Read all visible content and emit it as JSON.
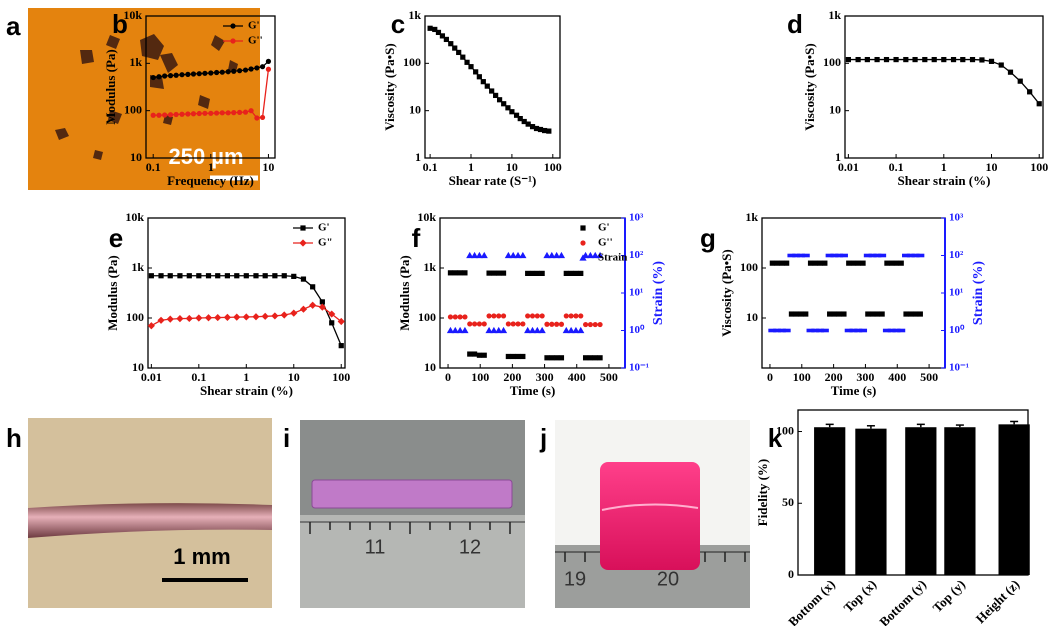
{
  "chart_data": [
    {
      "type": "line",
      "panel": "b",
      "x_label": "Frequency (Hz)",
      "y_label": "Modulus (Pa)",
      "log_x": true,
      "log_y": true,
      "xlim": [
        0.075,
        13
      ],
      "xticks": [
        0.1,
        1,
        10
      ],
      "ylim": [
        10,
        10000
      ],
      "yticks": [
        10,
        100,
        {
          "value": 1000,
          "label": "1k"
        },
        {
          "value": 10000,
          "label": "10k"
        }
      ],
      "legend": "upper right",
      "x": [
        0.1,
        0.126,
        0.158,
        0.2,
        0.25,
        0.316,
        0.4,
        0.5,
        0.63,
        0.79,
        1,
        1.26,
        1.58,
        2,
        2.5,
        3.16,
        4,
        5,
        6.3,
        7.9,
        10
      ],
      "series": [
        {
          "name": "G'",
          "color": "#000000",
          "marker": "circle",
          "values": [
            500,
            520,
            540,
            550,
            560,
            575,
            585,
            595,
            605,
            615,
            625,
            640,
            650,
            665,
            680,
            700,
            720,
            760,
            800,
            850,
            1100
          ]
        },
        {
          "name": "G''",
          "color": "#e8221c",
          "marker": "circle",
          "values": [
            80,
            80,
            81,
            82,
            83,
            84,
            85,
            86,
            87,
            88,
            88,
            89,
            90,
            90,
            91,
            92,
            93,
            100,
            70,
            72,
            750
          ]
        }
      ]
    },
    {
      "type": "line",
      "panel": "c",
      "x_label": "Shear rate (S⁻¹)",
      "y_label": "Viscosity (Pa•S)",
      "log_x": true,
      "log_y": true,
      "xlim": [
        0.075,
        150
      ],
      "xticks": [
        0.1,
        1,
        10,
        100
      ],
      "ylim": [
        1,
        1000
      ],
      "yticks": [
        1,
        10,
        100,
        {
          "value": 1000,
          "label": "1k"
        }
      ],
      "x": [
        0.1,
        0.13,
        0.16,
        0.2,
        0.25,
        0.32,
        0.4,
        0.5,
        0.63,
        0.8,
        1,
        1.3,
        1.6,
        2,
        2.5,
        3.2,
        4,
        5,
        6.3,
        8,
        10,
        13,
        16,
        20,
        25,
        32,
        40,
        50,
        63,
        80
      ],
      "series": [
        {
          "color": "#000000",
          "marker": "square",
          "values": [
            550,
            520,
            450,
            380,
            320,
            260,
            210,
            170,
            135,
            105,
            85,
            66,
            52,
            41,
            33,
            26,
            21,
            17,
            14,
            11.5,
            9.5,
            8,
            6.8,
            5.9,
            5.2,
            4.6,
            4.2,
            4.0,
            3.8,
            3.7
          ]
        }
      ]
    },
    {
      "type": "line",
      "panel": "d",
      "x_label": "Shear strain (%)",
      "y_label": "Viscosity (Pa•S)",
      "log_x": true,
      "log_y": true,
      "xlim": [
        0.0085,
        120
      ],
      "xticks": [
        0.01,
        0.1,
        1,
        10,
        100
      ],
      "ylim": [
        1,
        1000
      ],
      "yticks": [
        1,
        10,
        100,
        {
          "value": 1000,
          "label": "1k"
        }
      ],
      "x": [
        0.01,
        0.016,
        0.025,
        0.04,
        0.063,
        0.1,
        0.16,
        0.25,
        0.4,
        0.63,
        1,
        1.6,
        2.5,
        4,
        6.3,
        10,
        16,
        25,
        40,
        63,
        100
      ],
      "series": [
        {
          "color": "#000000",
          "marker": "square",
          "values": [
            120,
            120,
            120,
            120,
            120,
            120,
            120,
            120,
            120,
            120,
            120,
            120,
            120,
            120,
            118,
            110,
            92,
            65,
            42,
            25,
            14
          ]
        }
      ]
    },
    {
      "type": "line",
      "panel": "e",
      "x_label": "Shear strain (%)",
      "y_label": "Modulus (Pa)",
      "log_x": true,
      "log_y": true,
      "xlim": [
        0.0085,
        120
      ],
      "xticks": [
        0.01,
        0.1,
        1,
        10,
        100
      ],
      "ylim": [
        10,
        10000
      ],
      "yticks": [
        10,
        100,
        {
          "value": 1000,
          "label": "1k"
        },
        {
          "value": 10000,
          "label": "10k"
        }
      ],
      "legend": "upper right",
      "x": [
        0.01,
        0.016,
        0.025,
        0.04,
        0.063,
        0.1,
        0.16,
        0.25,
        0.4,
        0.63,
        1,
        1.6,
        2.5,
        4,
        6.3,
        10,
        16,
        25,
        40,
        63,
        100
      ],
      "series": [
        {
          "name": "G'",
          "color": "#000000",
          "marker": "square",
          "values": [
            700,
            700,
            700,
            700,
            700,
            700,
            700,
            700,
            700,
            700,
            700,
            700,
            700,
            700,
            700,
            680,
            600,
            420,
            210,
            80,
            28
          ]
        },
        {
          "name": "G\"",
          "color": "#e8221c",
          "marker": "diamond",
          "values": [
            70,
            90,
            95,
            97,
            98,
            100,
            101,
            102,
            103,
            104,
            105,
            106,
            108,
            110,
            115,
            125,
            150,
            180,
            165,
            120,
            85
          ]
        }
      ]
    },
    {
      "type": "scatter",
      "panel": "f",
      "x_label": "Time (s)",
      "y_label": "Modulus (Pa)",
      "y2_label": "Strain (%)",
      "log_y": true,
      "log_y2": true,
      "xlim": [
        -25,
        550
      ],
      "xticks": [
        0,
        100,
        200,
        300,
        400,
        500
      ],
      "ylim": [
        10,
        10000
      ],
      "yticks": [
        10,
        100,
        {
          "value": 1000,
          "label": "1k"
        },
        {
          "value": 10000,
          "label": "10k"
        }
      ],
      "y2lim": [
        0.1,
        1000
      ],
      "y2ticks": [
        {
          "value": 0.1,
          "label": "10⁻¹"
        },
        {
          "value": 1,
          "label": "10⁰"
        },
        {
          "value": 10,
          "label": "10¹"
        },
        {
          "value": 100,
          "label": "10²"
        },
        {
          "value": 1000,
          "label": "10³"
        }
      ],
      "legend": "upper right",
      "x": [
        7.5,
        22.5,
        37.5,
        52.5,
        67.5,
        82.5,
        97.5,
        112.5,
        127.5,
        142.5,
        157.5,
        172.5,
        187.5,
        202.5,
        217.5,
        232.5,
        247.5,
        262.5,
        277.5,
        292.5,
        307.5,
        322.5,
        337.5,
        352.5,
        367.5,
        382.5,
        397.5,
        412.5,
        427.5,
        442.5,
        457.5,
        472.5
      ],
      "series": [
        {
          "name": "G'",
          "color": "#000000",
          "marker": "square",
          "values": [
            800,
            800,
            800,
            800,
            19,
            19,
            18,
            18,
            790,
            790,
            790,
            790,
            17,
            17,
            17,
            17,
            780,
            780,
            780,
            780,
            16,
            16,
            16,
            16,
            780,
            780,
            780,
            780,
            16,
            16,
            16,
            16
          ]
        },
        {
          "name": "G''",
          "color": "#e8221c",
          "marker": "circle",
          "values": [
            105,
            105,
            105,
            105,
            76,
            76,
            76,
            76,
            110,
            110,
            110,
            110,
            76,
            76,
            76,
            76,
            110,
            110,
            110,
            110,
            75,
            75,
            75,
            75,
            110,
            110,
            110,
            110,
            74,
            74,
            74,
            74
          ]
        },
        {
          "name": "Strain",
          "color": "#1a1aff",
          "marker": "triangle",
          "axis": "y2",
          "values": [
            1,
            1,
            1,
            1,
            100,
            100,
            100,
            100,
            1,
            1,
            1,
            1,
            100,
            100,
            100,
            100,
            1,
            1,
            1,
            1,
            100,
            100,
            100,
            100,
            1,
            1,
            1,
            1,
            100,
            100,
            100,
            100
          ]
        }
      ]
    },
    {
      "type": "scatter",
      "panel": "g",
      "x_label": "Time (s)",
      "y_label": "Viscosity (Pa•S)",
      "y2_label": "Strain (%)",
      "log_y": true,
      "log_y2": true,
      "xlim": [
        -25,
        550
      ],
      "xticks": [
        0,
        100,
        200,
        300,
        400,
        500
      ],
      "ylim": [
        1,
        1000
      ],
      "yticks": [
        10,
        100,
        {
          "value": 1000,
          "label": "1k"
        }
      ],
      "y2lim": [
        0.1,
        1000
      ],
      "y2ticks": [
        {
          "value": 0.1,
          "label": "10⁻¹"
        },
        {
          "value": 1,
          "label": "10⁰"
        },
        {
          "value": 10,
          "label": "10¹"
        },
        {
          "value": 100,
          "label": "10²"
        },
        {
          "value": 1000,
          "label": "10³"
        }
      ],
      "x": [
        7.5,
        22.5,
        37.5,
        52.5,
        67.5,
        82.5,
        97.5,
        112.5,
        127.5,
        142.5,
        157.5,
        172.5,
        187.5,
        202.5,
        217.5,
        232.5,
        247.5,
        262.5,
        277.5,
        292.5,
        307.5,
        322.5,
        337.5,
        352.5,
        367.5,
        382.5,
        397.5,
        412.5,
        427.5,
        442.5,
        457.5,
        472.5
      ],
      "series": [
        {
          "color": "#000000",
          "marker": "square",
          "values": [
            125,
            125,
            125,
            125,
            12,
            12,
            12,
            12,
            125,
            125,
            125,
            125,
            12,
            12,
            12,
            12,
            125,
            125,
            125,
            125,
            12,
            12,
            12,
            12,
            125,
            125,
            125,
            125,
            12,
            12,
            12,
            12
          ]
        },
        {
          "color": "#1a1aff",
          "marker": "dash",
          "axis": "y2",
          "values": [
            1,
            1,
            1,
            1,
            100,
            100,
            100,
            100,
            1,
            1,
            1,
            1,
            100,
            100,
            100,
            100,
            1,
            1,
            1,
            1,
            100,
            100,
            100,
            100,
            1,
            1,
            1,
            1,
            100,
            100,
            100,
            100
          ]
        }
      ]
    },
    {
      "type": "bar",
      "panel": "k",
      "y_label": "Fidelity (%)",
      "color": "#000000",
      "categories": [
        "Bottom (x)",
        "Top (x)",
        "Bottom (y)",
        "Top (y)",
        "Height (z)"
      ],
      "values": [
        103,
        102,
        103,
        103,
        105
      ],
      "errors": [
        2,
        2,
        2,
        1.5,
        2
      ],
      "ylim": [
        0,
        115
      ],
      "yticks": [
        0,
        50,
        100
      ]
    }
  ],
  "images": [
    {
      "panel": "a",
      "scalebar": "250 µm"
    },
    {
      "panel": "h",
      "scalebar": "1 mm"
    },
    {
      "panel": "i",
      "ruler_labels": [
        "11",
        "12"
      ]
    },
    {
      "panel": "j",
      "ruler_labels": [
        "19",
        "20"
      ]
    }
  ]
}
